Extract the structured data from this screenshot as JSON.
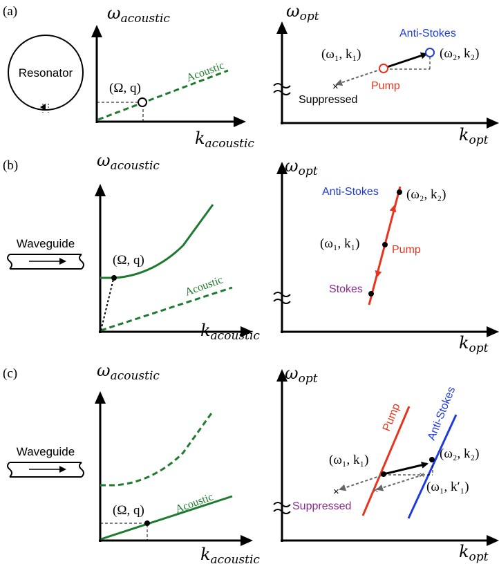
{
  "colors": {
    "axis": "#000000",
    "acoustic": "#1e7a2e",
    "pump": "#e8341c",
    "anti_stokes": "#1f3bdc",
    "stokes": "#8b2a8b",
    "arrow_gray": "#666666"
  },
  "panels": {
    "a": {
      "label": "(a)",
      "device": "Resonator",
      "acoustic_axes": {
        "y": "ω",
        "y_sub": "acoustic",
        "x": "k",
        "x_sub": "acoustic"
      },
      "acoustic_branch": "Acoustic",
      "phonon_point": "(Ω, q)",
      "optical_axes": {
        "y": "ω",
        "y_sub": "opt",
        "x": "k",
        "x_sub": "opt"
      },
      "pump_point": "(ω₁, k₁)",
      "pump_label": "Pump",
      "anti_stokes_point": "(ω₂, k₂)",
      "anti_stokes_label": "Anti-Stokes",
      "suppressed_label": "Suppressed"
    },
    "b": {
      "label": "(b)",
      "device": "Waveguide",
      "acoustic_axes": {
        "y": "ω",
        "y_sub": "acoustic",
        "x": "k",
        "x_sub": "acoustic"
      },
      "acoustic_branch": "Acoustic",
      "phonon_point": "(Ω, q)",
      "optical_axes": {
        "y": "ω",
        "y_sub": "opt",
        "x": "k",
        "x_sub": "opt"
      },
      "anti_stokes_label": "Anti-Stokes",
      "anti_stokes_point": "(ω₂, k₂)",
      "pump_point": "(ω₁, k₁)",
      "pump_label": "Pump",
      "stokes_label": "Stokes"
    },
    "c": {
      "label": "(c)",
      "device": "Waveguide",
      "acoustic_axes": {
        "y": "ω",
        "y_sub": "acoustic",
        "x": "k",
        "x_sub": "acoustic"
      },
      "acoustic_branch": "Acoustic",
      "phonon_point": "(Ω, q)",
      "optical_axes": {
        "y": "ω",
        "y_sub": "opt",
        "x": "k",
        "x_sub": "opt"
      },
      "pump_label": "Pump",
      "anti_stokes_label": "Anti-Stokes",
      "pump_point": "(ω₁, k₁)",
      "anti_stokes_point": "(ω₂, k₂)",
      "shifted_point": "(ω₁, k′₁)",
      "suppressed_label": "Suppressed"
    }
  }
}
